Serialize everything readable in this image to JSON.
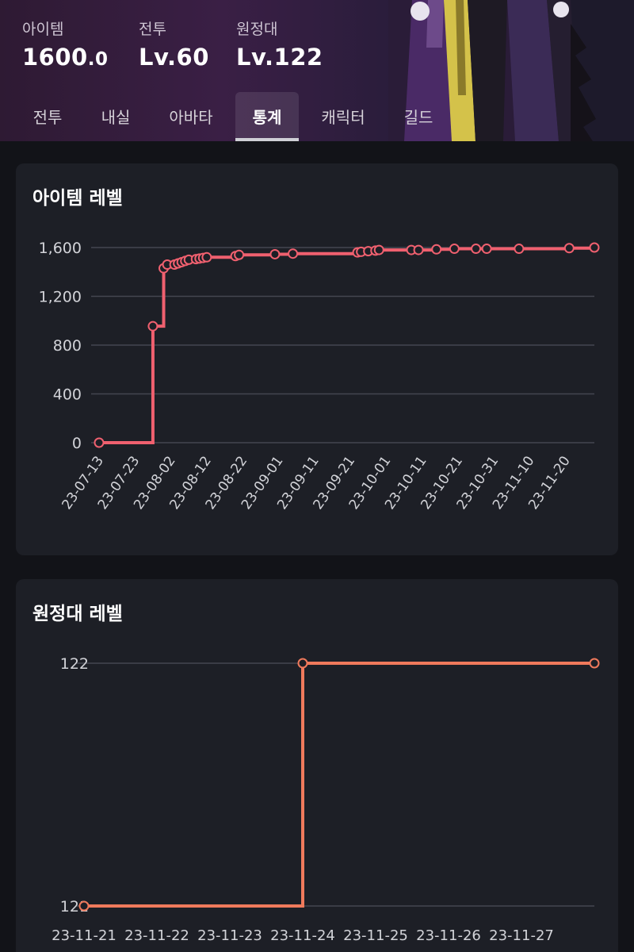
{
  "header": {
    "stats": [
      {
        "label": "아이템",
        "value": "1600",
        "decimal": ".0"
      },
      {
        "label": "전투",
        "value": "Lv.60",
        "decimal": ""
      },
      {
        "label": "원정대",
        "value": "Lv.122",
        "decimal": ""
      }
    ],
    "tabs": [
      "전투",
      "내실",
      "아바타",
      "통계",
      "캐릭터",
      "길드"
    ],
    "active_tab": "통계",
    "colors": {
      "accent_item": "#f0606f",
      "accent_roster": "#f07a5c"
    }
  },
  "item_card": {
    "title": "아이템 레벨"
  },
  "roster_card": {
    "title": "원정대 레벨"
  },
  "chart_data": [
    {
      "type": "line",
      "step": true,
      "title": "아이템 레벨",
      "xlabel": "",
      "ylabel": "",
      "ylim": [
        0,
        1600
      ],
      "yticks": [
        "0",
        "400",
        "800",
        "1,200",
        "1,600"
      ],
      "xticks": [
        "23-07-13",
        "23-07-23",
        "23-08-02",
        "23-08-12",
        "23-08-22",
        "23-09-01",
        "23-09-11",
        "23-09-21",
        "23-10-01",
        "23-10-11",
        "23-10-21",
        "23-10-31",
        "23-11-10",
        "23-11-20"
      ],
      "grid": true,
      "points": [
        {
          "x": "2023-07-13",
          "y": 0
        },
        {
          "x": "2023-07-28",
          "y": 955
        },
        {
          "x": "2023-07-31",
          "y": 1430
        },
        {
          "x": "2023-08-01",
          "y": 1460
        },
        {
          "x": "2023-08-03",
          "y": 1460
        },
        {
          "x": "2023-08-04",
          "y": 1470
        },
        {
          "x": "2023-08-05",
          "y": 1480
        },
        {
          "x": "2023-08-06",
          "y": 1490
        },
        {
          "x": "2023-08-07",
          "y": 1500
        },
        {
          "x": "2023-08-09",
          "y": 1505
        },
        {
          "x": "2023-08-10",
          "y": 1510
        },
        {
          "x": "2023-08-11",
          "y": 1515
        },
        {
          "x": "2023-08-12",
          "y": 1520
        },
        {
          "x": "2023-08-20",
          "y": 1530
        },
        {
          "x": "2023-08-21",
          "y": 1540
        },
        {
          "x": "2023-08-31",
          "y": 1545
        },
        {
          "x": "2023-09-05",
          "y": 1550
        },
        {
          "x": "2023-09-23",
          "y": 1560
        },
        {
          "x": "2023-09-24",
          "y": 1565
        },
        {
          "x": "2023-09-26",
          "y": 1570
        },
        {
          "x": "2023-09-28",
          "y": 1575
        },
        {
          "x": "2023-09-29",
          "y": 1580
        },
        {
          "x": "2023-10-08",
          "y": 1580
        },
        {
          "x": "2023-10-10",
          "y": 1580
        },
        {
          "x": "2023-10-15",
          "y": 1585
        },
        {
          "x": "2023-10-20",
          "y": 1590
        },
        {
          "x": "2023-10-26",
          "y": 1590
        },
        {
          "x": "2023-10-29",
          "y": 1590
        },
        {
          "x": "2023-11-07",
          "y": 1590
        },
        {
          "x": "2023-11-21",
          "y": 1595
        },
        {
          "x": "2023-11-28",
          "y": 1600
        }
      ]
    },
    {
      "type": "line",
      "step": true,
      "title": "원정대 레벨",
      "xlabel": "",
      "ylabel": "",
      "ylim": [
        121,
        122
      ],
      "yticks": [
        "121",
        "122"
      ],
      "xticks": [
        "23-11-21",
        "23-11-22",
        "23-11-23",
        "23-11-24",
        "23-11-25",
        "23-11-26",
        "23-11-27"
      ],
      "grid": true,
      "points": [
        {
          "x": "2023-11-21",
          "y": 121
        },
        {
          "x": "2023-11-24",
          "y": 122
        },
        {
          "x": "2023-11-28",
          "y": 122
        }
      ]
    }
  ]
}
